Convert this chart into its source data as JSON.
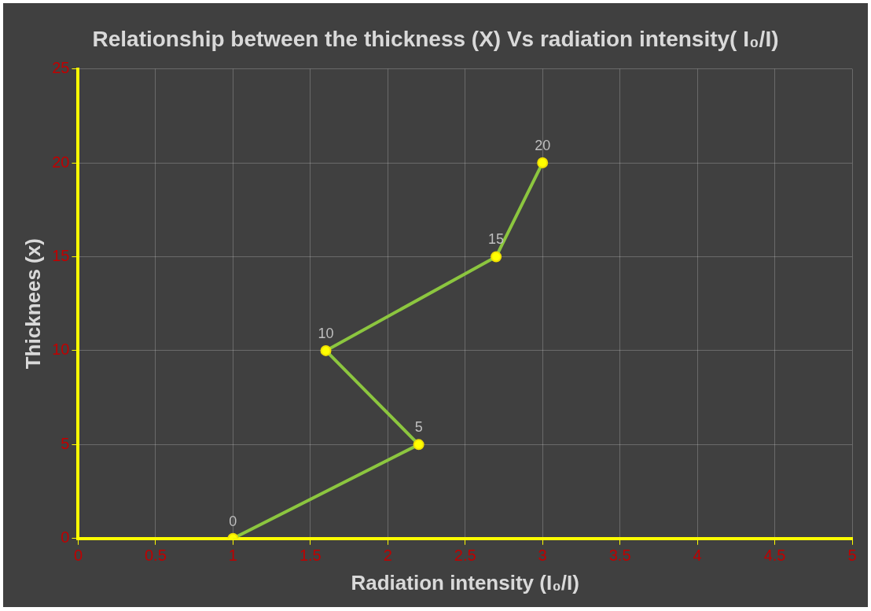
{
  "chart_data": {
    "type": "line",
    "title": "Relationship between the thickness (X) Vs radiation intensity( I₀/I)",
    "xlabel": "Radiation intensity (I₀/I)",
    "ylabel": "Thicknees (x)",
    "x": [
      1,
      2.2,
      1.6,
      2.7,
      3
    ],
    "series": [
      {
        "color": "#8cc63f",
        "values": [
          0,
          5,
          10,
          15,
          20
        ]
      }
    ],
    "xlim": [
      0,
      5
    ],
    "xticks": [
      0,
      0.5,
      1,
      1.5,
      2,
      2.5,
      3,
      3.5,
      4,
      4.5,
      5
    ],
    "ylim": [
      0,
      25
    ],
    "yticks": [
      0,
      5,
      10,
      15,
      20,
      25
    ],
    "grid": true,
    "legend": false,
    "marker": "circle",
    "line_style": "solid",
    "data_labels": true
  }
}
